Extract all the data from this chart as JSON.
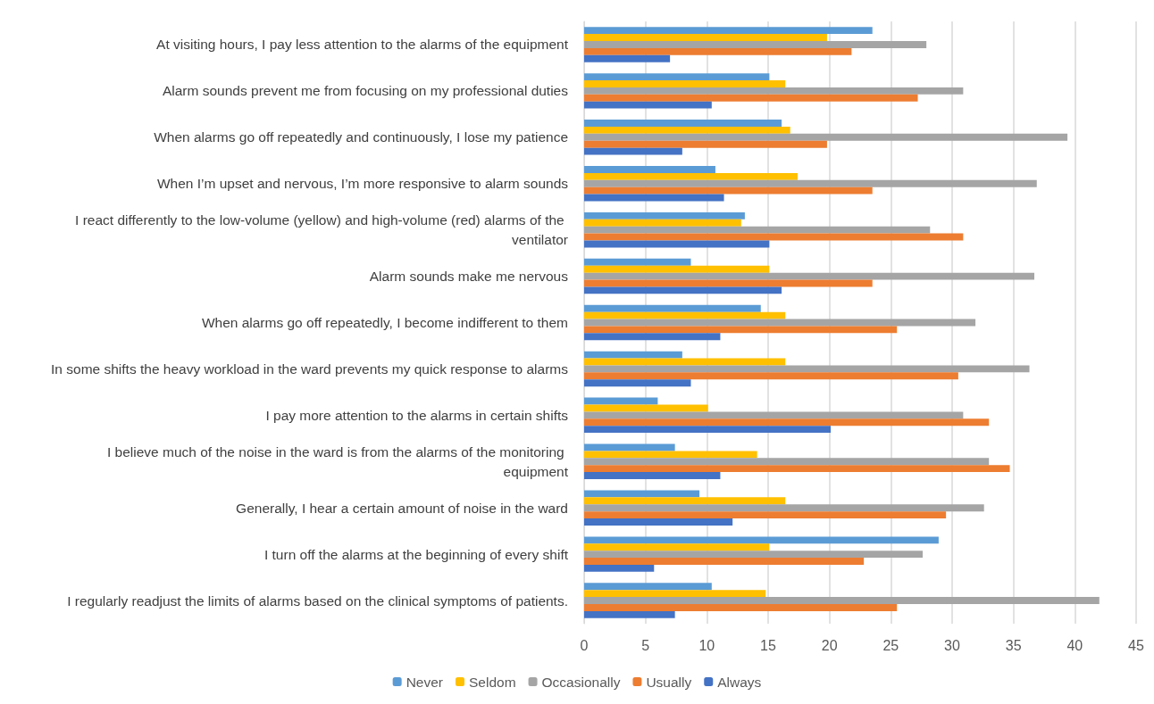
{
  "chart_data": {
    "type": "bar",
    "orientation": "horizontal",
    "categories": [
      "At visiting hours, I pay less attention to the alarms of the equipment",
      "Alarm sounds prevent me from focusing on my professional duties",
      "When alarms go off repeatedly and continuously, I lose my patience",
      "When I’m upset and nervous, I’m more responsive to alarm sounds",
      "I react differently to the low-volume (yellow) and high-volume (red) alarms of the ventilator",
      "Alarm sounds make me nervous",
      "When alarms go off repeatedly, I become indifferent to them",
      "In some shifts the heavy workload in the ward prevents my quick response to alarms",
      "I pay more attention to the alarms in certain shifts",
      "I believe much of the noise in the ward is from the alarms of the monitoring equipment",
      "Generally, I hear a certain amount of noise in the ward",
      "I turn off the alarms at the beginning of every shift",
      "I regularly readjust the limits of alarms based on the clinical symptoms of patients."
    ],
    "series": [
      {
        "name": "Never",
        "color": "#5b9bd5",
        "values": [
          23.5,
          15.1,
          16.1,
          10.7,
          13.1,
          8.7,
          14.4,
          8.0,
          6.0,
          7.4,
          9.4,
          28.9,
          10.4
        ]
      },
      {
        "name": "Seldom",
        "color": "#ffc000",
        "values": [
          19.8,
          16.4,
          16.8,
          17.4,
          12.8,
          15.1,
          16.4,
          16.4,
          10.1,
          14.1,
          16.4,
          15.1,
          14.8
        ]
      },
      {
        "name": "Occasionally",
        "color": "#a5a5a5",
        "values": [
          27.9,
          30.9,
          39.4,
          36.9,
          28.2,
          36.7,
          31.9,
          36.3,
          30.9,
          33.0,
          32.6,
          27.6,
          42.0
        ]
      },
      {
        "name": "Usually",
        "color": "#ed7d31",
        "values": [
          21.8,
          27.2,
          19.8,
          23.5,
          30.9,
          23.5,
          25.5,
          30.5,
          33.0,
          34.7,
          29.5,
          22.8,
          25.5
        ]
      },
      {
        "name": "Always",
        "color": "#4472c4",
        "values": [
          7.0,
          10.4,
          8.0,
          11.4,
          15.1,
          16.1,
          11.1,
          8.7,
          20.1,
          11.1,
          12.1,
          5.7,
          7.4
        ]
      }
    ],
    "xlim": [
      0,
      45
    ],
    "xticks": [
      0,
      5,
      10,
      15,
      20,
      25,
      30,
      35,
      40,
      45
    ],
    "grid": "x",
    "legend": "bottom"
  }
}
